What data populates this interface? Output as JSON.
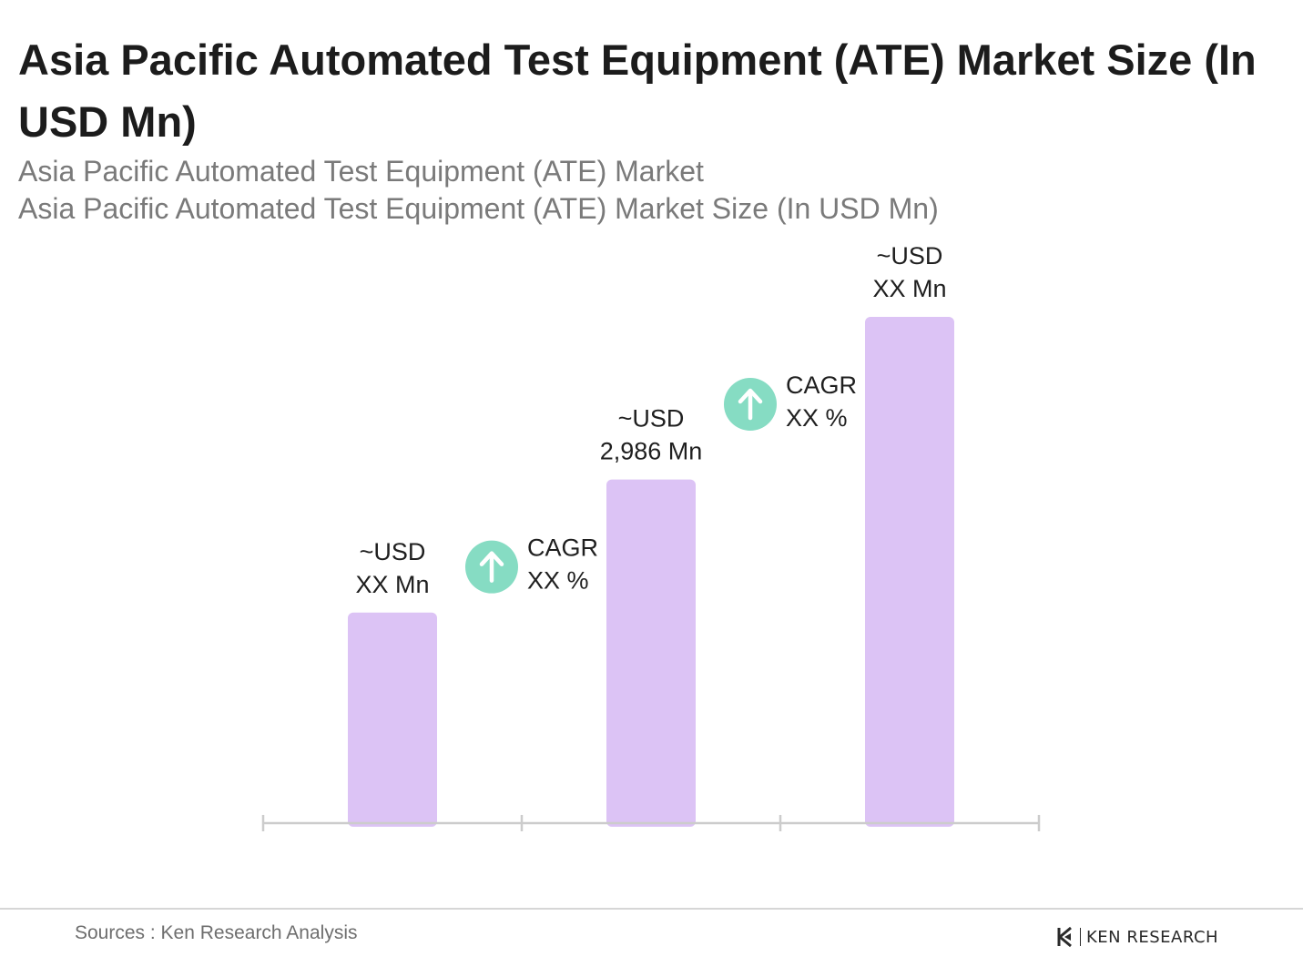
{
  "header": {
    "title": "Asia Pacific Automated Test Equipment (ATE) Market Size (In USD Mn)",
    "subtitle_1": "Asia Pacific Automated Test Equipment (ATE) Market",
    "subtitle_2": "Asia Pacific Automated Test Equipment (ATE) Market Size (In USD Mn)"
  },
  "chart_data": {
    "type": "bar",
    "categories": [
      "",
      "",
      ""
    ],
    "values": [
      1830,
      2986,
      4400
    ],
    "value_labels": [
      [
        "~USD",
        "XX Mn"
      ],
      [
        "~USD",
        "2,986 Mn"
      ],
      [
        "~USD",
        "XX Mn"
      ]
    ],
    "bar_color": "#dcc3f5",
    "ylim": [
      0,
      4400
    ],
    "grid": false,
    "cagr_markers": [
      {
        "label": "CAGR",
        "value": "XX %"
      },
      {
        "label": "CAGR",
        "value": "XX %"
      }
    ],
    "cagr_color": "#86dcc3",
    "axis_color": "#cccccc"
  },
  "footer": {
    "source": "Sources : Ken Research Analysis",
    "brand": "KEN RESEARCH"
  }
}
